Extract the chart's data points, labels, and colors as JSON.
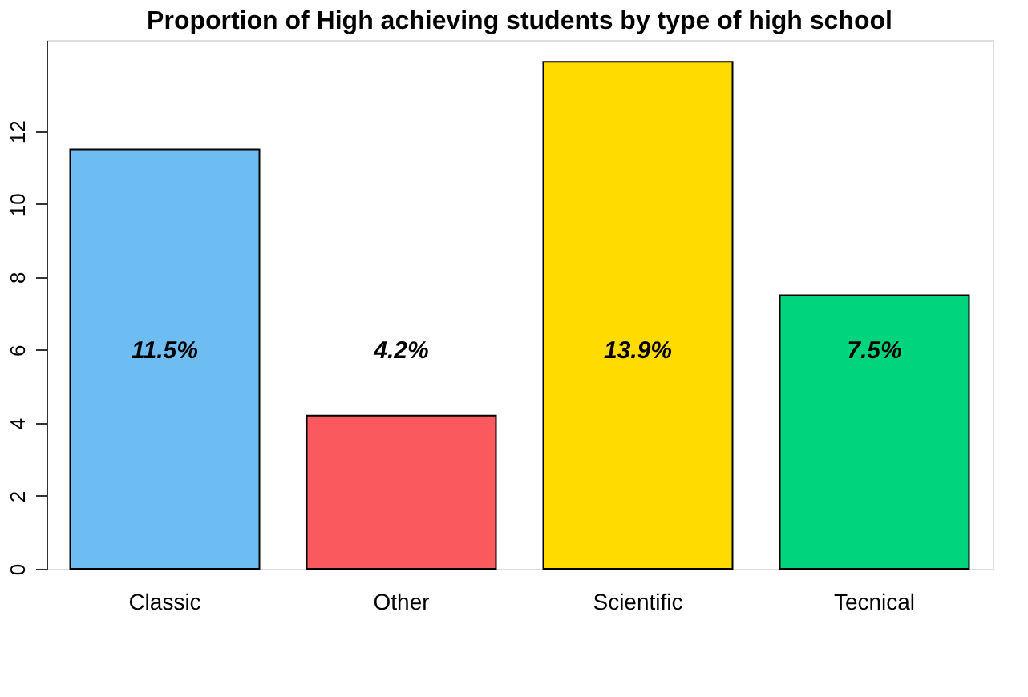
{
  "chart_data": {
    "type": "bar",
    "title": "Proportion of High achieving students by type of high school",
    "categories": [
      "Classic",
      "Other",
      "Scientific",
      "Tecnical"
    ],
    "values": [
      11.5,
      4.2,
      13.9,
      7.5
    ],
    "colors": [
      "#6dbdf2",
      "#fa5a5e",
      "#ffdb00",
      "#00d47c"
    ],
    "value_labels": [
      "11.5%",
      "4.2%",
      "13.9%",
      "7.5%"
    ],
    "ylim": [
      0,
      14.5
    ],
    "yticks": [
      0,
      2,
      4,
      6,
      8,
      10,
      12
    ],
    "grid": false
  }
}
